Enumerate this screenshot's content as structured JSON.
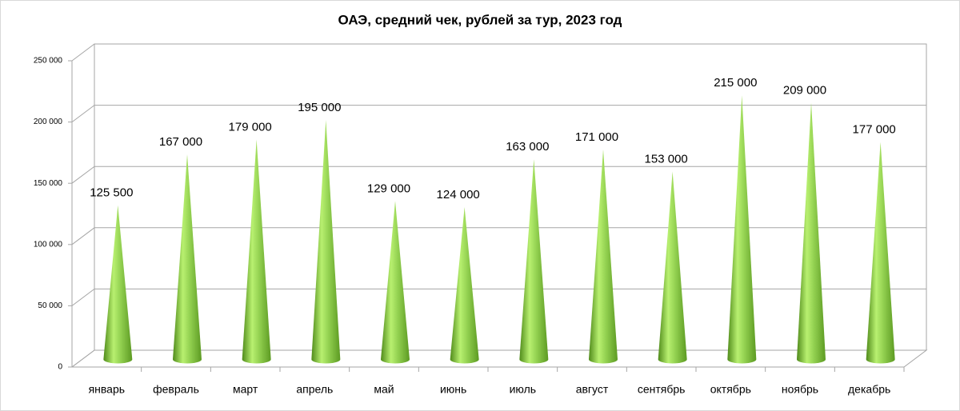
{
  "chart_data": {
    "type": "cone",
    "title": "ОАЭ, средний чек, рублей за тур, 2023 год",
    "categories": [
      "январь",
      "февраль",
      "март",
      "апрель",
      "май",
      "июнь",
      "июль",
      "август",
      "сентябрь",
      "октябрь",
      "ноябрь",
      "декабрь"
    ],
    "values": [
      125500,
      167000,
      179000,
      195000,
      129000,
      124000,
      163000,
      171000,
      153000,
      215000,
      209000,
      177000
    ],
    "value_labels": [
      "125 500",
      "167 000",
      "179 000",
      "195 000",
      "129 000",
      "124 000",
      "163 000",
      "171 000",
      "153 000",
      "215 000",
      "209 000",
      "177 000"
    ],
    "color": "#92d050",
    "ylim": [
      0,
      250000
    ],
    "yticks": [
      0,
      {
        "value": 50000,
        "label": "50 000"
      },
      {
        "value": 100000,
        "label": "100 000"
      },
      {
        "value": 150000,
        "label": "150 000"
      },
      {
        "value": 200000,
        "label": "200 000"
      },
      {
        "value": 250000,
        "label": "250 000"
      }
    ],
    "grid": true
  }
}
